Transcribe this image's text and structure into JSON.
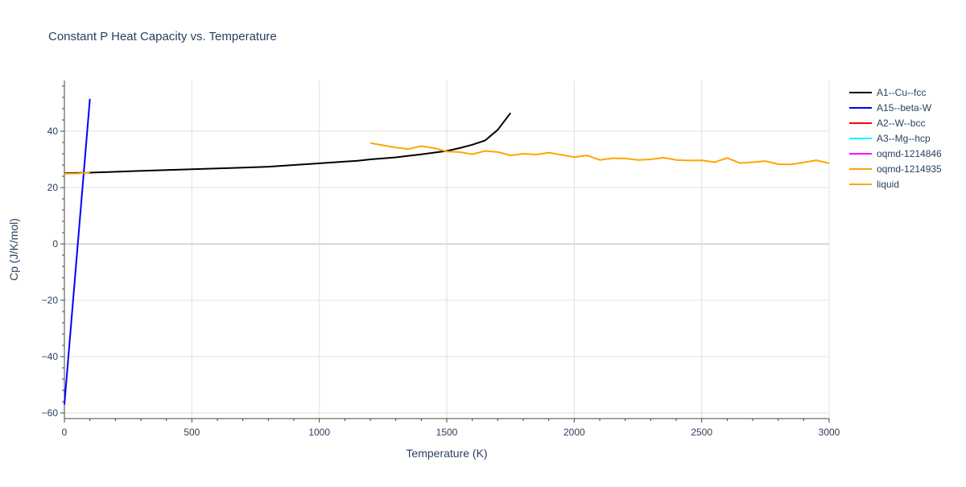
{
  "chart_data": {
    "type": "line",
    "title": "Constant P Heat Capacity vs. Temperature",
    "xlabel": "Temperature (K)",
    "ylabel": "Cp (J/K/mol)",
    "xlim": [
      0,
      3000
    ],
    "ylim": [
      -62,
      58
    ],
    "xticks": [
      0,
      500,
      1000,
      1500,
      2000,
      2500,
      3000
    ],
    "xtick_labels": [
      "0",
      "500",
      "1000",
      "1500",
      "2000",
      "2500",
      "3000"
    ],
    "yticks": [
      -60,
      -40,
      -20,
      0,
      20,
      40
    ],
    "ytick_labels": [
      "−60",
      "−40",
      "−20",
      "0",
      "20",
      "40"
    ],
    "grid": true,
    "legend_position": "right",
    "series": [
      {
        "name": "A1--Cu--fcc",
        "color": "#000000",
        "x": [
          0,
          100,
          200,
          300,
          400,
          500,
          600,
          700,
          800,
          900,
          1000,
          1100,
          1150,
          1200,
          1300,
          1400,
          1500,
          1550,
          1600,
          1650,
          1700,
          1750
        ],
        "y": [
          25.1,
          25.3,
          25.6,
          25.9,
          26.2,
          26.5,
          26.8,
          27.1,
          27.4,
          28.0,
          28.6,
          29.2,
          29.5,
          30.0,
          30.7,
          31.8,
          33.0,
          34.0,
          35.2,
          36.7,
          40.5,
          46.5
        ]
      },
      {
        "name": "A15--beta-W",
        "color": "#0000ff",
        "x": [
          0,
          100
        ],
        "y": [
          -57,
          51.5
        ]
      },
      {
        "name": "A2--W--bcc",
        "color": "#ff0000",
        "x": [],
        "y": []
      },
      {
        "name": "A3--Mg--hcp",
        "color": "#00ffff",
        "x": [],
        "y": []
      },
      {
        "name": "oqmd-1214846",
        "color": "#ff00ff",
        "x": [],
        "y": []
      },
      {
        "name": "oqmd-1214935",
        "color": "#ffa500",
        "x": [
          0,
          50,
          100
        ],
        "y": [
          24.9,
          25.0,
          25.4
        ]
      },
      {
        "name": "liquid",
        "color": "#ffa500",
        "x": [
          1200,
          1250,
          1300,
          1350,
          1400,
          1450,
          1500,
          1550,
          1600,
          1650,
          1700,
          1750,
          1800,
          1850,
          1900,
          1950,
          2000,
          2050,
          2100,
          2150,
          2200,
          2250,
          2300,
          2350,
          2400,
          2450,
          2500,
          2550,
          2600,
          2650,
          2700,
          2750,
          2800,
          2850,
          2900,
          2950,
          3000
        ],
        "y": [
          35.8,
          35.0,
          34.2,
          33.7,
          34.7,
          34.0,
          32.8,
          32.6,
          31.8,
          33.0,
          32.6,
          31.4,
          32.0,
          31.7,
          32.4,
          31.6,
          30.8,
          31.4,
          29.8,
          30.4,
          30.3,
          29.8,
          30.0,
          30.6,
          29.8,
          29.6,
          29.7,
          29.0,
          30.5,
          28.7,
          29.0,
          29.4,
          28.3,
          28.2,
          28.9,
          29.7,
          28.6
        ]
      }
    ]
  }
}
